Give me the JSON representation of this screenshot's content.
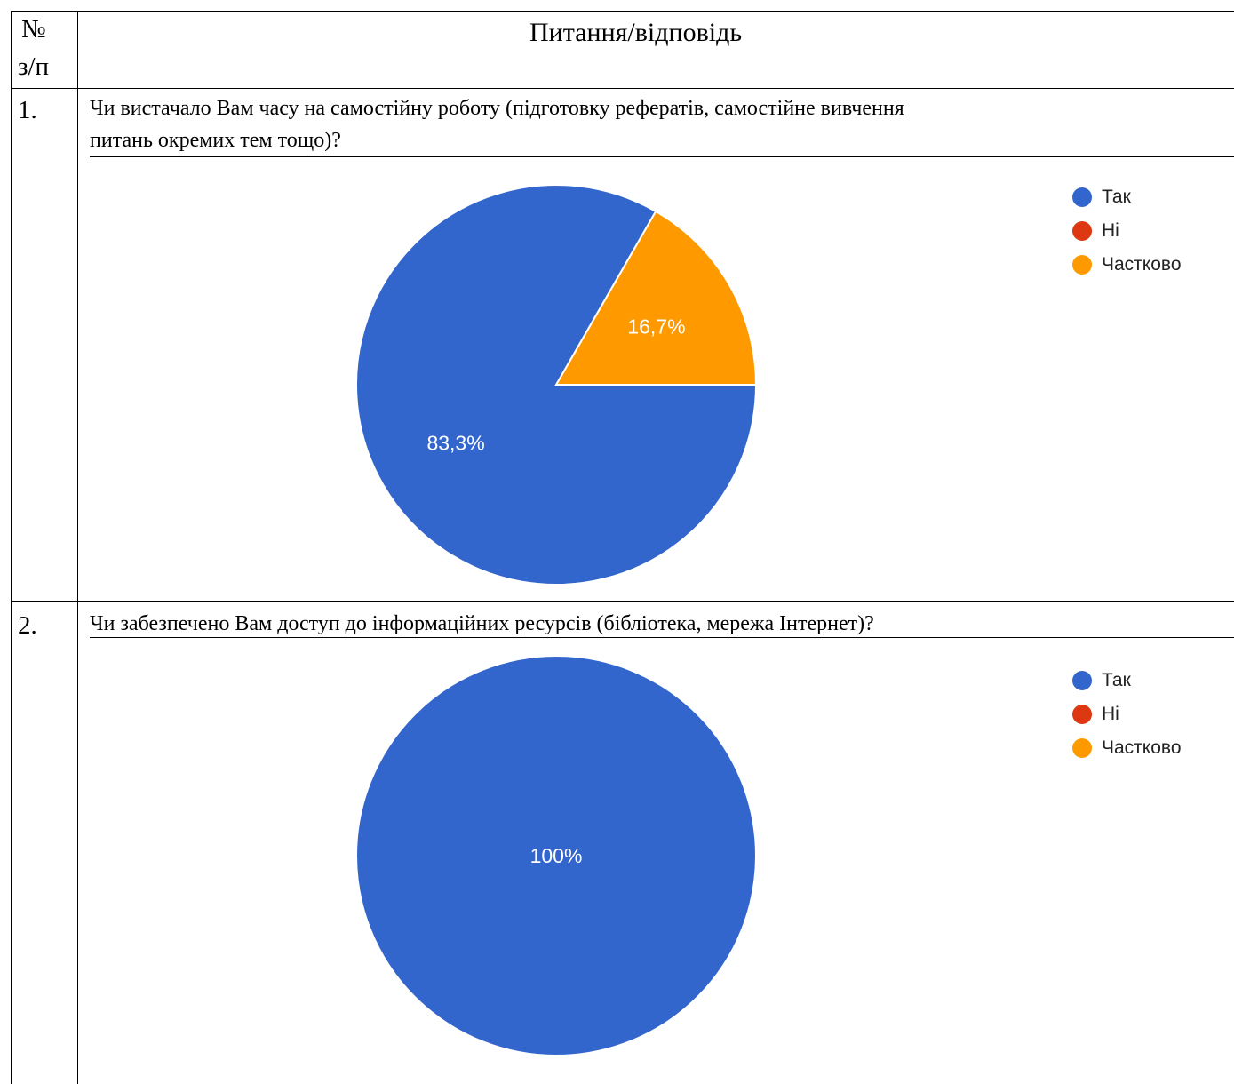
{
  "header": {
    "num_label_line1": "№",
    "num_label_line2": "з/п",
    "title": "Питання/відповідь"
  },
  "rows": [
    {
      "number": "1.",
      "question_line1": "Чи вистачало Вам часу на самостійну роботу (підготовку рефератів, самостійне вивчення",
      "question_line2": "питань окремих тем тощо)?"
    },
    {
      "number": "2.",
      "question_line1": "Чи забезпечено Вам доступ до інформаційних ресурсів (бібліотека, мережа Інтернет)?"
    }
  ],
  "legend": [
    {
      "label": "Так",
      "color": "#3366cc"
    },
    {
      "label": "Ні",
      "color": "#dc3912"
    },
    {
      "label": "Частково",
      "color": "#ff9900"
    }
  ],
  "chart_data": [
    {
      "type": "pie",
      "categories": [
        "Так",
        "Ні",
        "Частково"
      ],
      "values": [
        83.3,
        0,
        16.7
      ],
      "labels": [
        "83,3%",
        "",
        "16,7%"
      ],
      "colors": [
        "#3366cc",
        "#dc3912",
        "#ff9900"
      ],
      "legend_position": "right"
    },
    {
      "type": "pie",
      "categories": [
        "Так",
        "Ні",
        "Частково"
      ],
      "values": [
        100,
        0,
        0
      ],
      "labels": [
        "100%",
        "",
        ""
      ],
      "colors": [
        "#3366cc",
        "#dc3912",
        "#ff9900"
      ],
      "legend_position": "right"
    }
  ]
}
